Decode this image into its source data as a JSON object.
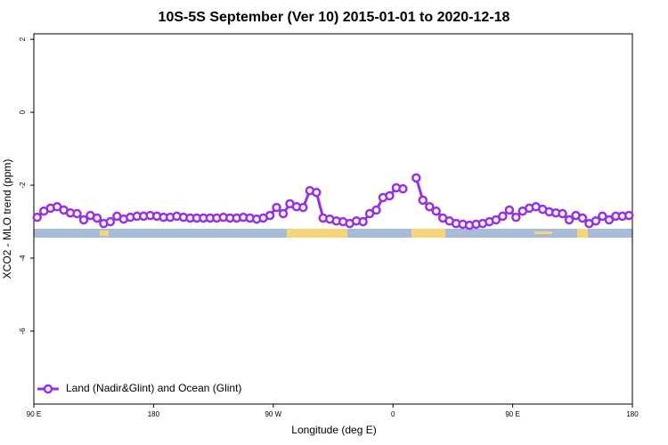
{
  "chart_data": {
    "type": "line",
    "title": "10S-5S September (Ver 10)   2015-01-01 to 2020-12-18",
    "xlabel": "Longitude (deg E)",
    "ylabel": "XCO2 - MLO trend (ppm)",
    "xlim": [
      90,
      540
    ],
    "ylim": [
      -8,
      2.15
    ],
    "xticks": [
      {
        "value": 90,
        "label": "90 E"
      },
      180,
      {
        "value": 270,
        "label": "90 W"
      },
      {
        "value": 360,
        "label": "0"
      },
      {
        "value": 450,
        "label": "90 E"
      },
      {
        "value": 540,
        "label": "180"
      }
    ],
    "yticks": [
      -6,
      -4,
      -2,
      0,
      2
    ],
    "legend": "bottom-left",
    "x": [
      92.5,
      97.5,
      102.5,
      107.5,
      112.5,
      117.5,
      122.5,
      127.5,
      132.5,
      137.5,
      142.5,
      147.5,
      152.5,
      157.5,
      162.5,
      167.5,
      172.5,
      177.5,
      182.5,
      187.5,
      192.5,
      197.5,
      202.5,
      207.5,
      212.5,
      217.5,
      222.5,
      227.5,
      232.5,
      237.5,
      242.5,
      247.5,
      252.5,
      257.5,
      262.5,
      267.5,
      272.5,
      277.5,
      282.5,
      287.5,
      292.5,
      297.5,
      302.5,
      307.5,
      312.5,
      317.5,
      322.5,
      327.5,
      332.5,
      337.5,
      342.5,
      347.5,
      352.5,
      357.5,
      362.5,
      367.5,
      372.5,
      377.5,
      382.5,
      387.5,
      392.5,
      397.5,
      402.5,
      407.5,
      412.5,
      417.5,
      422.5,
      427.5,
      432.5,
      437.5,
      442.5,
      447.5,
      452.5,
      457.5,
      462.5,
      467.5,
      472.5,
      477.5,
      482.5,
      487.5,
      492.5,
      497.5,
      502.5,
      507.5,
      512.5,
      517.5,
      522.5,
      527.5,
      532.5,
      537.5
    ],
    "series": [
      {
        "name": "Land (Nadir&Glint) and Ocean (Glint)",
        "color": "#9b30e0",
        "values": [
          -2.88,
          -2.71,
          -2.63,
          -2.59,
          -2.68,
          -2.76,
          -2.78,
          -2.95,
          -2.83,
          -2.9,
          -3.05,
          -3.0,
          -2.85,
          -2.93,
          -2.88,
          -2.85,
          -2.85,
          -2.83,
          -2.85,
          -2.88,
          -2.88,
          -2.85,
          -2.88,
          -2.9,
          -2.9,
          -2.9,
          -2.9,
          -2.9,
          -2.88,
          -2.9,
          -2.9,
          -2.88,
          -2.9,
          -2.93,
          -2.9,
          -2.83,
          -2.61,
          -2.78,
          -2.51,
          -2.59,
          -2.61,
          -2.15,
          -2.2,
          -2.9,
          -2.93,
          -2.98,
          -3.0,
          -3.05,
          -2.98,
          -3.0,
          -2.78,
          -2.68,
          -2.34,
          -2.29,
          -2.07,
          -2.1,
          null,
          -1.8,
          -2.41,
          -2.59,
          -2.71,
          -2.9,
          -2.98,
          -3.05,
          -3.07,
          -3.1,
          -3.07,
          -3.05,
          -3.0,
          -2.95,
          -2.85,
          -2.68,
          -2.88,
          -2.71,
          -2.63,
          -2.59,
          -2.66,
          -2.73,
          -2.76,
          -2.78,
          -2.95,
          -2.83,
          -2.9,
          -3.05,
          -2.98,
          -2.85,
          -2.95,
          -2.85,
          -2.85,
          -2.83
        ]
      }
    ]
  }
}
